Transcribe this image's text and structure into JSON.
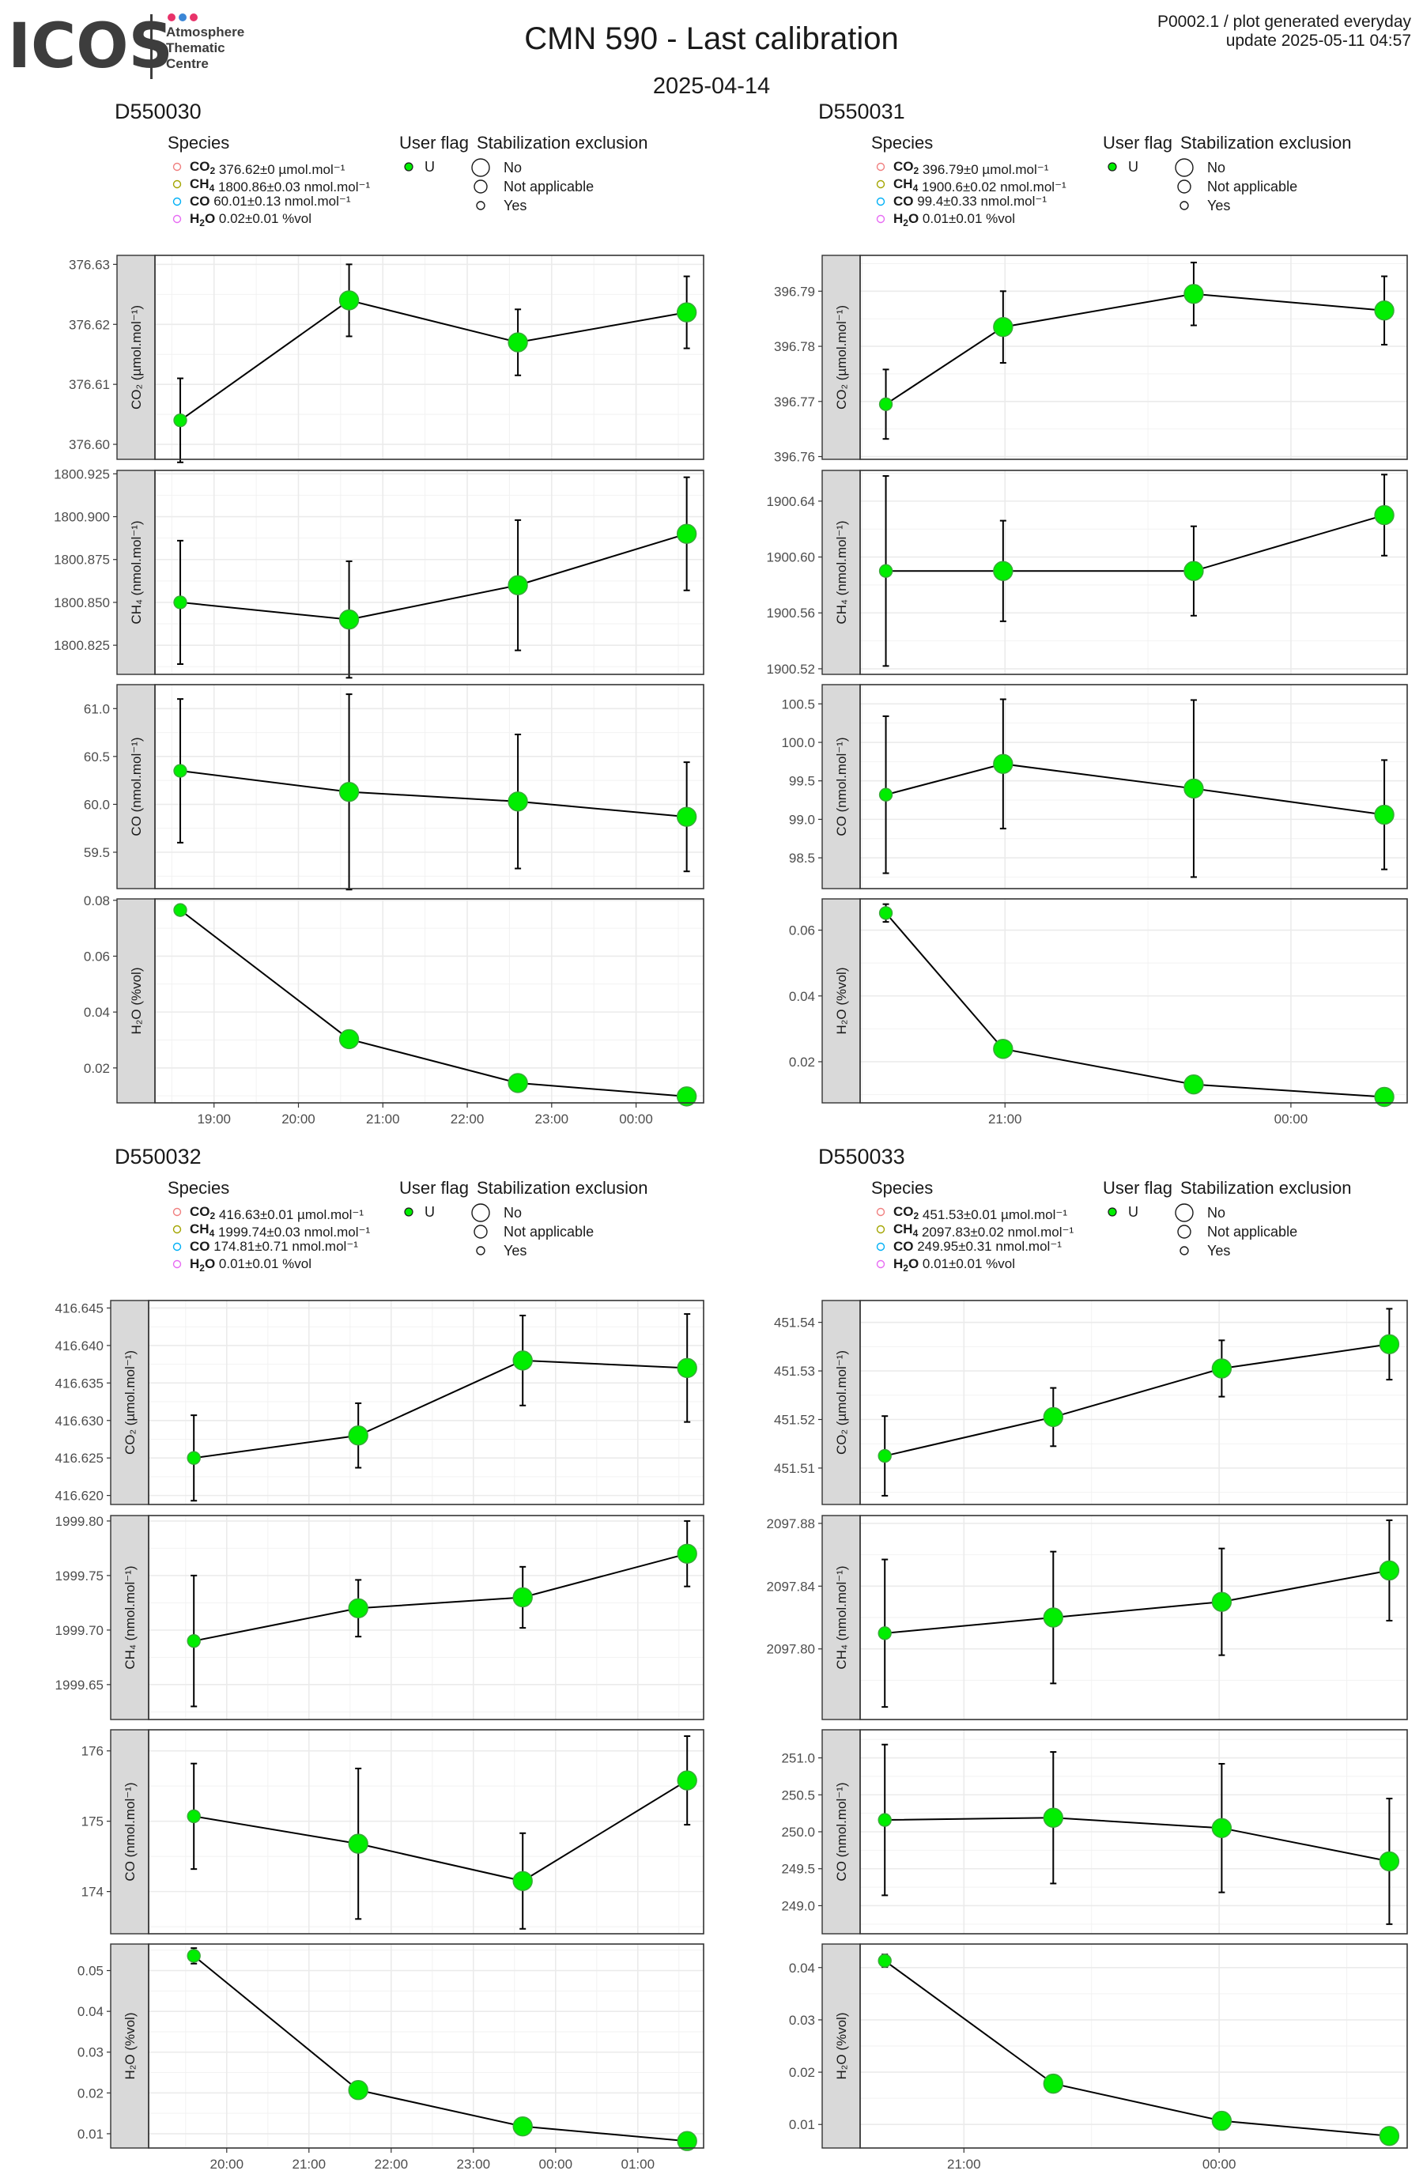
{
  "header": {
    "logo_text": "ICOS",
    "logo_subtitle": [
      "Atmosphere",
      "Thematic",
      "Centre"
    ],
    "logo_dot_colors": [
      "#e8336a",
      "#3b86d6",
      "#e8336a"
    ],
    "title": "CMN 590 - Last calibration",
    "date": "2025-04-14",
    "meta_line1": "P0002.1 / plot generated everyday",
    "meta_line2": "update  2025-05-11 04:57"
  },
  "legend_labels": {
    "species": "Species",
    "user_flag": "User flag",
    "stabilization": "Stabilization exclusion",
    "user_flag_value": "U",
    "stab_values": [
      "No",
      "Not applicable",
      "Yes"
    ]
  },
  "colors": {
    "co2": "#f08080",
    "ch4": "#a3a500",
    "co": "#00b0f6",
    "h2o": "#e76bf3",
    "point_fill": "#00ee00",
    "point_stroke": "#3aa83a",
    "panel_strip": "#d9d9d9",
    "grid": "#ebebeb"
  },
  "chart_data": [
    {
      "type": "scatter",
      "title": "D550030",
      "legend": [
        {
          "species": "CO2",
          "value": "376.62±0",
          "unit": "µmol.mol⁻¹"
        },
        {
          "species": "CH4",
          "value": "1800.86±0.03",
          "unit": "nmol.mol⁻¹"
        },
        {
          "species": "CO",
          "value": "60.01±0.13",
          "unit": "nmol.mol⁻¹"
        },
        {
          "species": "H2O",
          "value": "0.02±0.01",
          "unit": "%vol"
        }
      ],
      "xlim": [
        18.3,
        24.8
      ],
      "x_ticks": [
        19,
        20,
        21,
        22,
        23,
        24
      ],
      "x_tick_labels": [
        "19:00",
        "20:00",
        "21:00",
        "22:00",
        "23:00",
        "00:00"
      ],
      "x": [
        18.6,
        20.6,
        22.6,
        24.6
      ],
      "panels": [
        {
          "ylabel": "CO₂ (µmol.mol⁻¹)",
          "ylim": [
            376.5975,
            376.6315
          ],
          "ticks": [
            376.6,
            376.61,
            376.62,
            376.63
          ],
          "tick_labels": [
            "376.60",
            "376.61",
            "376.62",
            "376.63"
          ],
          "values": [
            376.604,
            376.624,
            376.617,
            376.622
          ],
          "err": [
            0.007,
            0.006,
            0.0055,
            0.006
          ]
        },
        {
          "ylabel": "CH₄ (nmol.mol⁻¹)",
          "ylim": [
            1800.808,
            1800.927
          ],
          "ticks": [
            1800.825,
            1800.85,
            1800.875,
            1800.9,
            1800.925
          ],
          "tick_labels": [
            "1800.825",
            "1800.850",
            "1800.875",
            "1800.900",
            "1800.925"
          ],
          "values": [
            1800.85,
            1800.84,
            1800.86,
            1800.89
          ],
          "err": [
            0.036,
            0.034,
            0.038,
            0.033
          ]
        },
        {
          "ylabel": "CO (nmol.mol⁻¹)",
          "ylim": [
            59.12,
            61.25
          ],
          "ticks": [
            59.5,
            60.0,
            60.5,
            61.0
          ],
          "tick_labels": [
            "59.5",
            "60.0",
            "60.5",
            "61.0"
          ],
          "values": [
            60.35,
            60.13,
            60.03,
            59.87
          ],
          "err": [
            0.75,
            1.02,
            0.7,
            0.57
          ]
        },
        {
          "ylabel": "H₂O (%vol)",
          "ylim": [
            0.0075,
            0.0805
          ],
          "ticks": [
            0.02,
            0.04,
            0.06,
            0.08
          ],
          "tick_labels": [
            "0.02",
            "0.04",
            "0.06",
            "0.08"
          ],
          "values": [
            0.0765,
            0.0303,
            0.0146,
            0.0098
          ],
          "err": [
            0.0008,
            0.0012,
            0.0006,
            0.0004
          ]
        }
      ]
    },
    {
      "type": "scatter",
      "title": "D550031",
      "legend": [
        {
          "species": "CO2",
          "value": "396.79±0",
          "unit": "µmol.mol⁻¹"
        },
        {
          "species": "CH4",
          "value": "1900.6±0.02",
          "unit": "nmol.mol⁻¹"
        },
        {
          "species": "CO",
          "value": "99.4±0.33",
          "unit": "nmol.mol⁻¹"
        },
        {
          "species": "H2O",
          "value": "0.01±0.01",
          "unit": "%vol"
        }
      ],
      "xlim": [
        19.48,
        25.22
      ],
      "x_ticks": [
        21,
        24
      ],
      "x_tick_labels": [
        "21:00",
        "00:00"
      ],
      "x": [
        19.75,
        20.98,
        22.98,
        24.98
      ],
      "panels": [
        {
          "ylabel": "CO₂ (µmol.mol⁻¹)",
          "ylim": [
            396.7595,
            396.7965
          ],
          "ticks": [
            396.76,
            396.77,
            396.78,
            396.79
          ],
          "tick_labels": [
            "396.76",
            "396.77",
            "396.78",
            "396.79"
          ],
          "values": [
            396.7695,
            396.7835,
            396.7895,
            396.7865
          ],
          "err": [
            0.0063,
            0.0065,
            0.0057,
            0.0062
          ]
        },
        {
          "ylabel": "CH₄ (nmol.mol⁻¹)",
          "ylim": [
            1900.516,
            1900.662
          ],
          "ticks": [
            1900.52,
            1900.56,
            1900.6,
            1900.64
          ],
          "tick_labels": [
            "1900.52",
            "1900.56",
            "1900.60",
            "1900.64"
          ],
          "values": [
            1900.59,
            1900.59,
            1900.59,
            1900.63
          ],
          "err": [
            0.068,
            0.036,
            0.032,
            0.029
          ]
        },
        {
          "ylabel": "CO (nmol.mol⁻¹)",
          "ylim": [
            98.1,
            100.75
          ],
          "ticks": [
            98.5,
            99.0,
            99.5,
            100.0,
            100.5
          ],
          "tick_labels": [
            "98.5",
            "99.0",
            "99.5",
            "100.0",
            "100.5"
          ],
          "values": [
            99.32,
            99.72,
            99.4,
            99.06
          ],
          "err": [
            1.02,
            0.84,
            1.15,
            0.71
          ]
        },
        {
          "ylabel": "H₂O (%vol)",
          "ylim": [
            0.0075,
            0.0695
          ],
          "ticks": [
            0.02,
            0.04,
            0.06
          ],
          "tick_labels": [
            "0.02",
            "0.04",
            "0.06"
          ],
          "values": [
            0.0652,
            0.0239,
            0.0131,
            0.0093
          ],
          "err": [
            0.0027,
            0.001,
            0.0006,
            0.0004
          ]
        }
      ]
    },
    {
      "type": "scatter",
      "title": "D550032",
      "legend": [
        {
          "species": "CO2",
          "value": "416.63±0.01",
          "unit": "µmol.mol⁻¹"
        },
        {
          "species": "CH4",
          "value": "1999.74±0.03",
          "unit": "nmol.mol⁻¹"
        },
        {
          "species": "CO",
          "value": "174.81±0.71",
          "unit": "nmol.mol⁻¹"
        },
        {
          "species": "H2O",
          "value": "0.01±0.01",
          "unit": "%vol"
        }
      ],
      "xlim": [
        19.05,
        25.8
      ],
      "x_ticks": [
        20,
        21,
        22,
        23,
        24,
        25
      ],
      "x_tick_labels": [
        "20:00",
        "21:00",
        "22:00",
        "23:00",
        "00:00",
        "01:00"
      ],
      "x": [
        19.6,
        21.6,
        23.6,
        25.6
      ],
      "panels": [
        {
          "ylabel": "CO₂ (µmol.mol⁻¹)",
          "ylim": [
            416.6188,
            416.646
          ],
          "ticks": [
            416.62,
            416.625,
            416.63,
            416.635,
            416.64,
            416.645
          ],
          "tick_labels": [
            "416.620",
            "416.625",
            "416.630",
            "416.635",
            "416.640",
            "416.645"
          ],
          "values": [
            416.625,
            416.628,
            416.638,
            416.637
          ],
          "err": [
            0.0057,
            0.0043,
            0.006,
            0.0072
          ]
        },
        {
          "ylabel": "CH₄ (nmol.mol⁻¹)",
          "ylim": [
            1999.618,
            1999.805
          ],
          "ticks": [
            1999.65,
            1999.7,
            1999.75,
            1999.8
          ],
          "tick_labels": [
            "1999.65",
            "1999.70",
            "1999.75",
            "1999.80"
          ],
          "values": [
            1999.69,
            1999.72,
            1999.73,
            1999.77
          ],
          "err": [
            0.06,
            0.026,
            0.028,
            0.03
          ]
        },
        {
          "ylabel": "CO (nmol.mol⁻¹)",
          "ylim": [
            173.4,
            176.3
          ],
          "ticks": [
            174,
            175,
            176
          ],
          "tick_labels": [
            "174",
            "175",
            "176"
          ],
          "values": [
            175.07,
            174.68,
            174.15,
            175.58
          ],
          "err": [
            0.75,
            1.07,
            0.68,
            0.63
          ]
        },
        {
          "ylabel": "H₂O (%vol)",
          "ylim": [
            0.0065,
            0.0565
          ],
          "ticks": [
            0.01,
            0.02,
            0.03,
            0.04,
            0.05
          ],
          "tick_labels": [
            "0.01",
            "0.02",
            "0.03",
            "0.04",
            "0.05"
          ],
          "values": [
            0.0536,
            0.0207,
            0.0118,
            0.0082
          ],
          "err": [
            0.0019,
            0.0009,
            0.0005,
            0.0004
          ]
        }
      ]
    },
    {
      "type": "scatter",
      "title": "D550033",
      "legend": [
        {
          "species": "CO2",
          "value": "451.53±0.01",
          "unit": "µmol.mol⁻¹"
        },
        {
          "species": "CH4",
          "value": "2097.83±0.02",
          "unit": "nmol.mol⁻¹"
        },
        {
          "species": "CO",
          "value": "249.95±0.31",
          "unit": "nmol.mol⁻¹"
        },
        {
          "species": "H2O",
          "value": "0.01±0.01",
          "unit": "%vol"
        }
      ],
      "xlim": [
        19.78,
        26.21
      ],
      "x_ticks": [
        21,
        24
      ],
      "x_tick_labels": [
        "21:00",
        "00:00"
      ],
      "x": [
        20.07,
        22.05,
        24.03,
        26.0
      ],
      "panels": [
        {
          "ylabel": "CO₂ (µmol.mol⁻¹)",
          "ylim": [
            451.5025,
            451.5445
          ],
          "ticks": [
            451.51,
            451.52,
            451.53,
            451.54
          ],
          "tick_labels": [
            "451.51",
            "451.52",
            "451.53",
            "451.54"
          ],
          "values": [
            451.5125,
            451.5205,
            451.5305,
            451.5355
          ],
          "err": [
            0.0082,
            0.006,
            0.0058,
            0.0073
          ]
        },
        {
          "ylabel": "CH₄ (nmol.mol⁻¹)",
          "ylim": [
            2097.755,
            2097.885
          ],
          "ticks": [
            2097.8,
            2097.84,
            2097.88
          ],
          "tick_labels": [
            "2097.80",
            "2097.84",
            "2097.88"
          ],
          "values": [
            2097.81,
            2097.82,
            2097.83,
            2097.85
          ],
          "err": [
            0.047,
            0.042,
            0.034,
            0.032
          ]
        },
        {
          "ylabel": "CO (nmol.mol⁻¹)",
          "ylim": [
            248.62,
            251.38
          ],
          "ticks": [
            249.0,
            249.5,
            250.0,
            250.5,
            251.0
          ],
          "tick_labels": [
            "249.0",
            "249.5",
            "250.0",
            "250.5",
            "251.0"
          ],
          "values": [
            250.16,
            250.19,
            250.05,
            249.6
          ],
          "err": [
            1.02,
            0.89,
            0.87,
            0.85
          ]
        },
        {
          "ylabel": "H₂O (%vol)",
          "ylim": [
            0.0055,
            0.0445
          ],
          "ticks": [
            0.01,
            0.02,
            0.03,
            0.04
          ],
          "tick_labels": [
            "0.01",
            "0.02",
            "0.03",
            "0.04"
          ],
          "values": [
            0.0413,
            0.0178,
            0.0107,
            0.0078
          ],
          "err": [
            0.0012,
            0.0005,
            0.0004,
            0.0003
          ]
        }
      ]
    }
  ]
}
